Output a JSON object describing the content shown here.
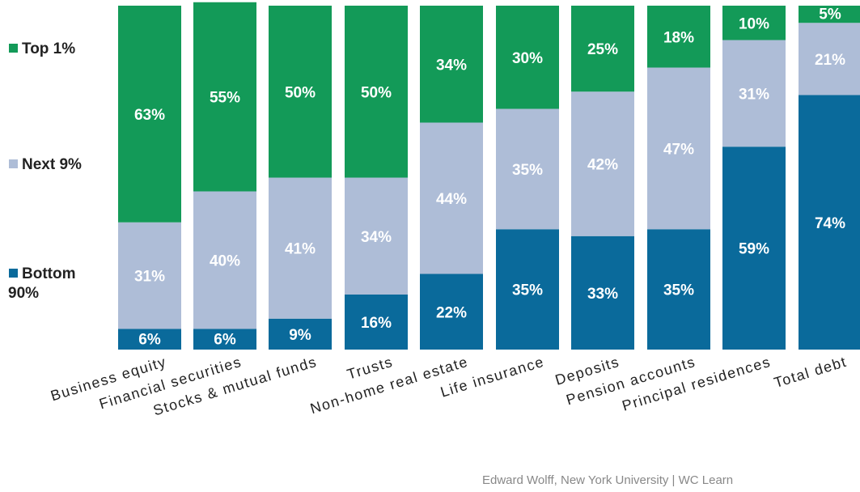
{
  "chart_data": {
    "type": "bar",
    "stacked": true,
    "percent_stacked": true,
    "categories": [
      "Business equity",
      "Financial securities",
      "Stocks & mutual funds",
      "Trusts",
      "Non-home real estate",
      "Life insurance",
      "Deposits",
      "Pension accounts",
      "Principal residences",
      "Total debt"
    ],
    "series": [
      {
        "name": "Bottom 90%",
        "color": "#0a6a9b",
        "values": [
          6,
          6,
          9,
          16,
          22,
          35,
          33,
          35,
          59,
          74
        ]
      },
      {
        "name": "Next 9%",
        "color": "#aebdd7",
        "values": [
          31,
          40,
          41,
          34,
          44,
          35,
          42,
          47,
          31,
          21
        ]
      },
      {
        "name": "Top 1%",
        "color": "#139a58",
        "values": [
          63,
          55,
          50,
          50,
          34,
          30,
          25,
          18,
          10,
          5
        ]
      }
    ],
    "value_labels": [
      [
        "6%",
        "31%",
        "63%"
      ],
      [
        "6%",
        "40%",
        "55%"
      ],
      [
        "9%",
        "41%",
        "50%"
      ],
      [
        "16%",
        "34%",
        "50%"
      ],
      [
        "22%",
        "44%",
        "34%"
      ],
      [
        "35%",
        "35%",
        "30%"
      ],
      [
        "33%",
        "42%",
        "25%"
      ],
      [
        "35%",
        "47%",
        "18%"
      ],
      [
        "59%",
        "31%",
        "10%"
      ],
      [
        "74%",
        "21%",
        "5%"
      ]
    ],
    "legend": {
      "position": "left",
      "items": [
        {
          "label_lines": [
            "Top 1%"
          ],
          "color": "#139a58"
        },
        {
          "label_lines": [
            "Next 9%"
          ],
          "color": "#aebdd7"
        },
        {
          "label_lines": [
            "Bottom",
            "90%"
          ],
          "color": "#0a6a9b"
        }
      ]
    },
    "ylim": [
      0,
      100
    ],
    "title": "",
    "xlabel": "",
    "ylabel": "",
    "grid": false,
    "source": "Edward Wolff, New York University | WC Learn"
  },
  "colors": {
    "background": "#ffffff",
    "label_on_dark": "#ffffff",
    "label_on_light": "#ffffff",
    "axis_text": "#222222",
    "source_text": "#888888"
  }
}
